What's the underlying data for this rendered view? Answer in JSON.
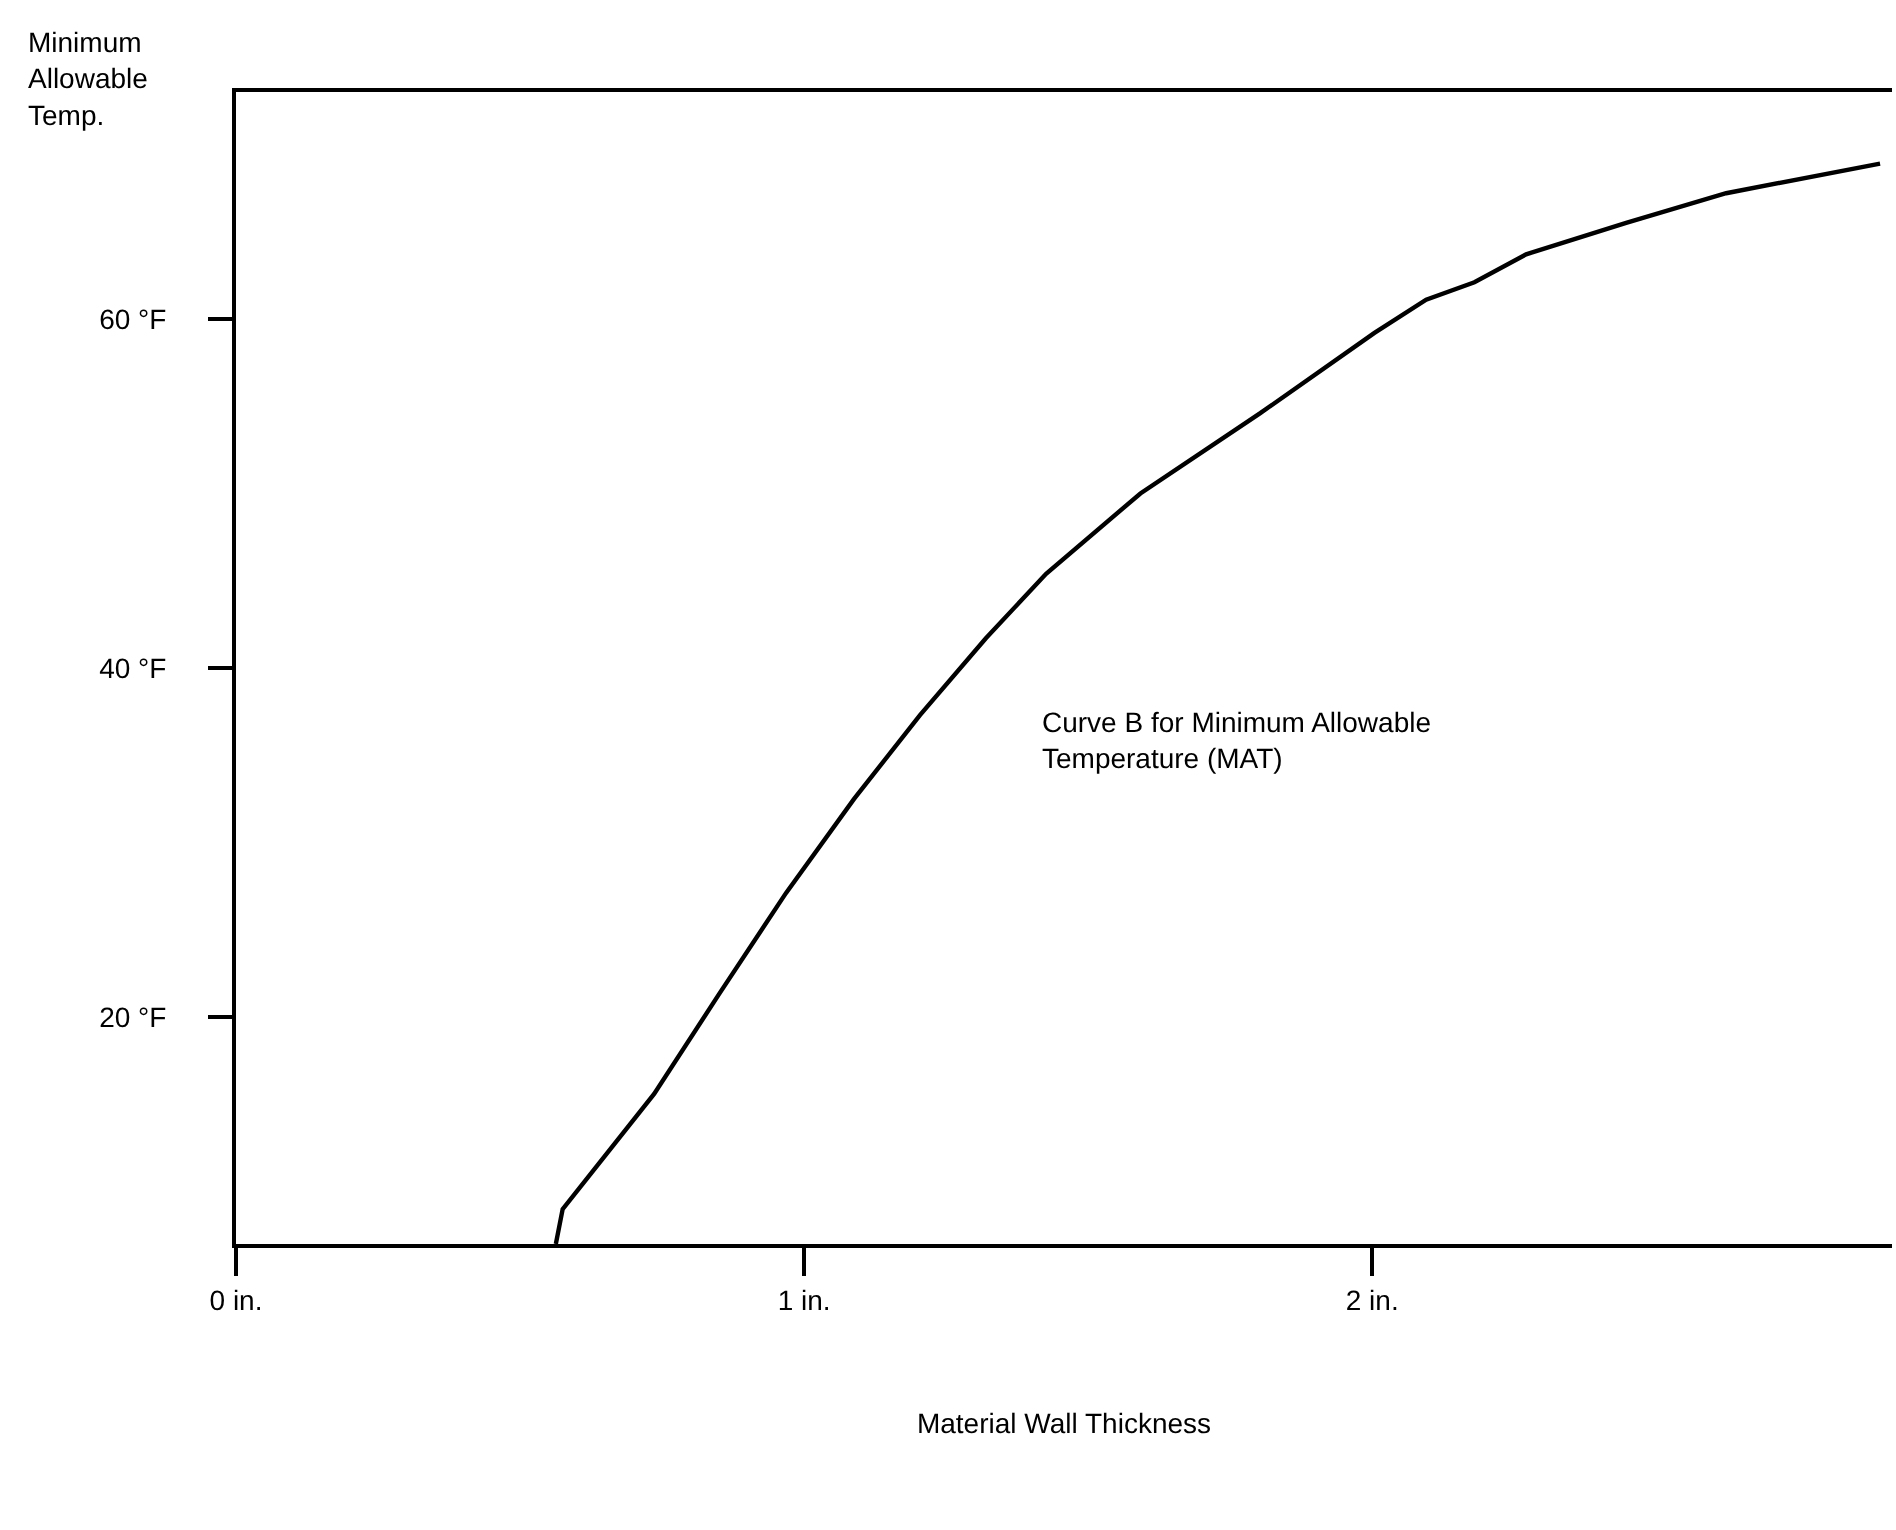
{
  "chart_data": {
    "type": "line",
    "xlabel": "Material Wall Thickness",
    "ylabel": "Minimum\nAllowable\nTemp.",
    "annotations": [
      "Curve B for Minimum Allowable\nTemperature (MAT)"
    ],
    "x": [
      0.563,
      0.575,
      0.736,
      0.852,
      0.968,
      1.088,
      1.204,
      1.32,
      1.426,
      1.592,
      1.803,
      2.004,
      2.095,
      2.18,
      2.271,
      2.447,
      2.623,
      2.894
    ],
    "series": [
      {
        "color": "#000000",
        "values": [
          7,
          9,
          15.6,
          21.4,
          27.1,
          32.5,
          37.3,
          41.7,
          45.4,
          50,
          54.6,
          59.2,
          61.1,
          62.1,
          63.7,
          65.5,
          67.2,
          68.9
        ]
      }
    ],
    "xlim": [
      0,
      2.915
    ],
    "ylim": [
      7,
      73
    ],
    "xticks": [
      {
        "value": 0,
        "label": "0 in."
      },
      {
        "value": 1,
        "label": "1 in."
      },
      {
        "value": 2,
        "label": "2 in."
      }
    ],
    "yticks": [
      {
        "value": 20,
        "label": "20 °F"
      },
      {
        "value": 40,
        "label": "40 °F"
      },
      {
        "value": 60,
        "label": "60 °F"
      }
    ],
    "grid": false,
    "marker": "none",
    "line_style": "solid"
  }
}
